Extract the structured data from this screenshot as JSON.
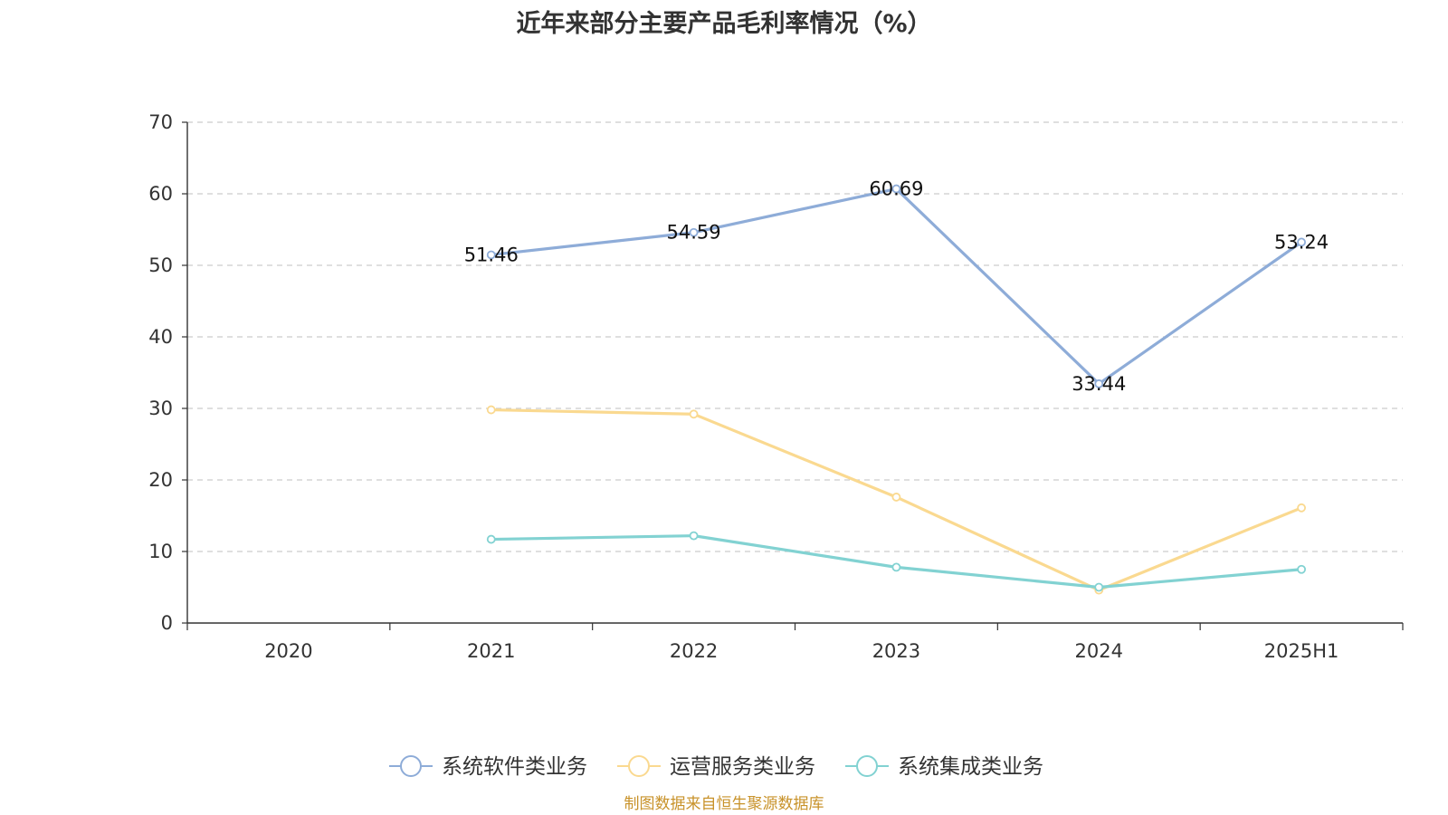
{
  "chart_data": {
    "type": "line",
    "title": "近年来部分主要产品毛利率情况（%）",
    "categories": [
      "2020",
      "2021",
      "2022",
      "2023",
      "2024",
      "2025H1"
    ],
    "ylim": [
      0,
      70
    ],
    "yticks": [
      0,
      10,
      20,
      30,
      40,
      50,
      60,
      70
    ],
    "grid": true,
    "legend_position": "bottom",
    "series": [
      {
        "name": "系统软件类业务",
        "color": "#8eacd8",
        "values": [
          null,
          51.46,
          54.59,
          60.69,
          33.44,
          53.24
        ],
        "show_labels": true
      },
      {
        "name": "运营服务类业务",
        "color": "#fad990",
        "values": [
          null,
          29.8,
          29.2,
          17.6,
          4.6,
          16.1
        ],
        "show_labels": false
      },
      {
        "name": "系统集成类业务",
        "color": "#82d2d2",
        "values": [
          null,
          11.7,
          12.2,
          7.8,
          5.0,
          7.5
        ],
        "show_labels": false
      }
    ]
  },
  "source_note": "制图数据来自恒生聚源数据库"
}
